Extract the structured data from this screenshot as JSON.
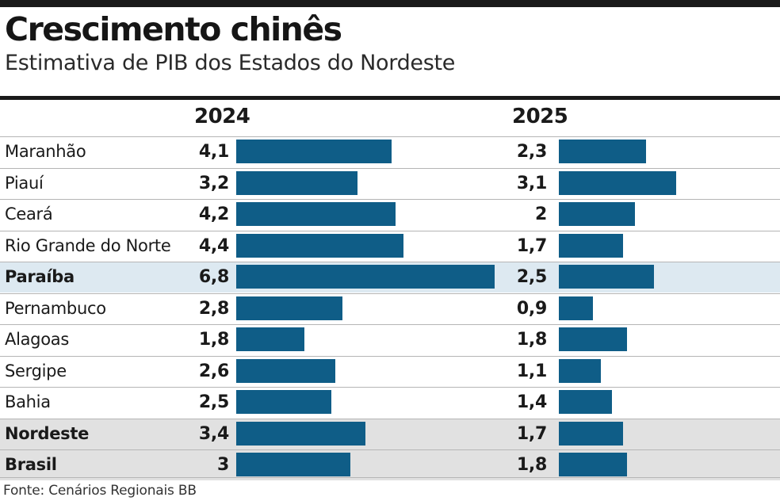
{
  "title": "Crescimento chinês",
  "subtitle": "Estimativa de PIB dos Estados do Nordeste",
  "source": "Fonte: Cenários Regionais BB",
  "colors": {
    "bar": "#0f5d87",
    "highlight_state": "#dde9f1",
    "highlight_aggregate": "#e1e1e1",
    "rule": "#1a1a1a"
  },
  "chart_data": {
    "type": "bar",
    "orientation": "horizontal",
    "title": "Crescimento chinês",
    "subtitle": "Estimativa de PIB dos Estados do Nordeste",
    "categories": [
      "Maranhão",
      "Piauí",
      "Ceará",
      "Rio Grande do Norte",
      "Paraíba",
      "Pernambuco",
      "Alagoas",
      "Sergipe",
      "Bahia",
      "Nordeste",
      "Brasil"
    ],
    "series": [
      {
        "name": "2024",
        "values": [
          4.1,
          3.2,
          4.2,
          4.4,
          6.8,
          2.8,
          1.8,
          2.6,
          2.5,
          3.4,
          3.0
        ],
        "labels": [
          "4,1",
          "3,2",
          "4,2",
          "4,4",
          "6,8",
          "2,8",
          "1,8",
          "2,6",
          "2,5",
          "3,4",
          "3"
        ]
      },
      {
        "name": "2025",
        "values": [
          2.3,
          3.1,
          2.0,
          1.7,
          2.5,
          0.9,
          1.8,
          1.1,
          1.4,
          1.7,
          1.8
        ],
        "labels": [
          "2,3",
          "3,1",
          "2",
          "1,7",
          "2,5",
          "0,9",
          "1,8",
          "1,1",
          "1,4",
          "1,7",
          "1,8"
        ]
      }
    ],
    "highlighted_categories": {
      "Paraíba": "state",
      "Nordeste": "aggregate",
      "Brasil": "aggregate"
    },
    "bold_categories": [
      "Paraíba",
      "Nordeste",
      "Brasil"
    ],
    "grid": false,
    "legend": "none"
  }
}
